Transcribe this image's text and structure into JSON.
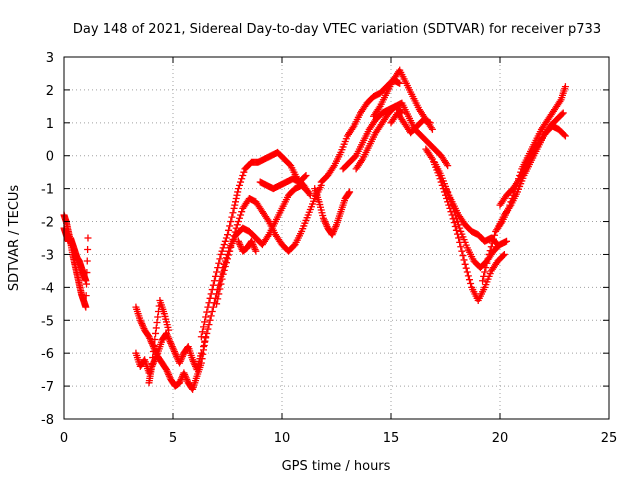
{
  "chart_data": {
    "type": "scatter",
    "title": "Day 148 of 2021, Sidereal Day-to-day VTEC variation (SDTVAR) for receiver p733",
    "xlabel": "GPS time / hours",
    "ylabel": "SDTVAR / TECUs",
    "xlim": [
      0,
      25
    ],
    "ylim": [
      -8,
      3
    ],
    "xticks": [
      "0",
      "5",
      "10",
      "15",
      "20",
      "25"
    ],
    "yticks": [
      "-8",
      "-7",
      "-6",
      "-5",
      "-4",
      "-3",
      "-2",
      "-1",
      "0",
      "1",
      "2",
      "3"
    ],
    "grid": true,
    "marker": "plus",
    "color": "#ff0000",
    "series": [
      {
        "x": [
          0.0,
          0.1,
          0.2,
          0.3,
          0.4,
          0.5,
          0.6,
          0.7,
          0.8,
          0.9,
          1.0,
          1.1
        ],
        "y": [
          -1.8,
          -2.0,
          -2.3,
          -2.6,
          -3.0,
          -3.3,
          -3.6,
          -3.9,
          -4.2,
          -4.4,
          -4.6,
          -2.5
        ]
      },
      {
        "x": [
          0.0,
          0.1,
          0.2,
          0.3,
          0.4,
          0.5,
          0.6,
          0.7,
          0.8,
          0.9,
          1.0
        ],
        "y": [
          -2.2,
          -2.4,
          -2.6,
          -2.5,
          -2.7,
          -2.9,
          -3.1,
          -3.2,
          -3.4,
          -3.6,
          -3.8
        ]
      },
      {
        "x": [
          3.3,
          3.5,
          3.7,
          3.9,
          4.1,
          4.3,
          4.5,
          4.7,
          4.9,
          5.1,
          5.3,
          5.5,
          5.7,
          5.9,
          6.1,
          6.3,
          6.5
        ],
        "y": [
          -4.6,
          -5.0,
          -5.3,
          -5.5,
          -5.8,
          -6.1,
          -6.3,
          -6.5,
          -6.8,
          -7.0,
          -6.9,
          -6.6,
          -6.9,
          -7.1,
          -6.7,
          -6.3,
          -5.5
        ]
      },
      {
        "x": [
          3.3,
          3.5,
          3.7,
          3.9,
          4.1,
          4.3,
          4.5,
          4.7,
          4.9,
          5.1,
          5.3,
          5.5,
          5.7,
          5.9,
          6.1,
          6.3
        ],
        "y": [
          -6.0,
          -6.4,
          -6.2,
          -6.6,
          -6.3,
          -6.0,
          -5.6,
          -5.4,
          -5.7,
          -6.0,
          -6.3,
          -6.0,
          -5.8,
          -6.2,
          -6.5,
          -6.0
        ]
      },
      {
        "x": [
          3.9,
          4.0,
          4.2,
          4.4,
          4.6,
          4.8
        ],
        "y": [
          -6.9,
          -6.5,
          -5.4,
          -4.4,
          -4.8,
          -5.3
        ]
      },
      {
        "x": [
          6.3,
          6.6,
          6.9,
          7.2,
          7.5,
          7.8,
          8.0,
          8.3,
          8.6,
          8.9,
          9.2,
          9.5,
          9.8,
          10.1,
          10.4,
          10.7,
          11.0,
          11.3
        ],
        "y": [
          -5.5,
          -4.6,
          -3.8,
          -3.0,
          -2.4,
          -1.6,
          -1.0,
          -0.4,
          -0.2,
          -0.2,
          -0.1,
          0.0,
          0.1,
          -0.1,
          -0.3,
          -0.7,
          -0.9,
          -1.2
        ]
      },
      {
        "x": [
          6.4,
          6.7,
          7.0,
          7.3,
          7.6,
          7.9,
          8.2,
          8.5,
          8.8,
          9.1,
          9.4,
          9.7,
          10.0,
          10.3,
          10.6,
          10.9,
          11.2
        ],
        "y": [
          -5.8,
          -5.0,
          -4.2,
          -3.4,
          -2.8,
          -2.4,
          -2.2,
          -2.3,
          -2.5,
          -2.7,
          -2.4,
          -2.0,
          -1.6,
          -1.2,
          -1.0,
          -0.9,
          -1.1
        ]
      },
      {
        "x": [
          7.0,
          7.3,
          7.6,
          7.9,
          8.2,
          8.5,
          8.8,
          9.1,
          9.4,
          9.7,
          10.0,
          10.3,
          10.6,
          10.9,
          11.2,
          11.5,
          11.8
        ],
        "y": [
          -4.5,
          -3.6,
          -2.9,
          -2.2,
          -1.6,
          -1.3,
          -1.4,
          -1.7,
          -2.0,
          -2.4,
          -2.7,
          -2.9,
          -2.7,
          -2.3,
          -1.8,
          -1.3,
          -0.9
        ]
      },
      {
        "x": [
          8.0,
          8.2,
          8.4,
          8.6,
          8.8
        ],
        "y": [
          -2.6,
          -2.9,
          -2.8,
          -2.6,
          -2.9
        ]
      },
      {
        "x": [
          9.0,
          9.3,
          9.6,
          9.9,
          10.2,
          10.5,
          10.8,
          11.1
        ],
        "y": [
          -0.8,
          -0.9,
          -1.0,
          -0.9,
          -0.8,
          -0.7,
          -0.8,
          -0.6
        ]
      },
      {
        "x": [
          11.5,
          11.7,
          11.9,
          12.1,
          12.3,
          12.5,
          12.7,
          12.9,
          13.1
        ],
        "y": [
          -1.0,
          -1.4,
          -1.9,
          -2.2,
          -2.4,
          -2.1,
          -1.7,
          -1.3,
          -1.1
        ]
      },
      {
        "x": [
          11.8,
          12.1,
          12.4,
          12.7,
          13.0,
          13.3,
          13.6,
          13.9,
          14.2,
          14.5,
          14.8,
          15.1,
          15.4
        ],
        "y": [
          -0.8,
          -0.6,
          -0.3,
          0.1,
          0.6,
          0.9,
          1.3,
          1.6,
          1.8,
          1.9,
          2.1,
          2.3,
          2.2
        ]
      },
      {
        "x": [
          12.8,
          13.1,
          13.4,
          13.7,
          14.0,
          14.3,
          14.6,
          14.9,
          15.2,
          15.5
        ],
        "y": [
          -0.4,
          -0.2,
          0.0,
          0.4,
          0.8,
          1.1,
          1.3,
          1.4,
          1.5,
          1.3
        ]
      },
      {
        "x": [
          13.4,
          13.7,
          14.0,
          14.3,
          14.6,
          14.9,
          15.2,
          15.5,
          15.8,
          16.1,
          16.4,
          16.7,
          17.0,
          17.3,
          17.6
        ],
        "y": [
          -0.4,
          -0.1,
          0.3,
          0.7,
          1.0,
          1.3,
          1.5,
          1.6,
          1.2,
          0.8,
          0.6,
          0.4,
          0.2,
          0.0,
          -0.3
        ]
      },
      {
        "x": [
          14.2,
          14.5,
          14.8,
          15.1,
          15.4,
          15.7,
          16.0,
          16.3,
          16.6,
          16.9
        ],
        "y": [
          1.2,
          1.5,
          1.9,
          2.3,
          2.6,
          2.2,
          1.8,
          1.4,
          1.1,
          0.8
        ]
      },
      {
        "x": [
          15.0,
          15.3,
          15.6,
          15.9,
          16.2,
          16.5,
          16.8
        ],
        "y": [
          1.0,
          1.3,
          1.0,
          0.7,
          0.9,
          1.1,
          1.0
        ]
      },
      {
        "x": [
          16.6,
          16.9,
          17.2,
          17.5,
          17.8,
          18.1,
          18.4,
          18.7,
          19.0,
          19.3,
          19.6,
          19.9,
          20.2
        ],
        "y": [
          0.2,
          -0.1,
          -0.6,
          -1.2,
          -1.8,
          -2.5,
          -3.3,
          -4.0,
          -4.4,
          -4.0,
          -3.5,
          -3.2,
          -3.0
        ]
      },
      {
        "x": [
          17.0,
          17.3,
          17.6,
          17.9,
          18.2,
          18.5,
          18.8,
          19.1,
          19.4,
          19.7,
          20.0,
          20.3
        ],
        "y": [
          -0.2,
          -0.6,
          -1.1,
          -1.7,
          -2.3,
          -2.8,
          -3.2,
          -3.4,
          -3.2,
          -2.9,
          -2.7,
          -2.6
        ]
      },
      {
        "x": [
          17.5,
          17.8,
          18.1,
          18.4,
          18.7,
          19.0,
          19.3,
          19.6,
          19.9
        ],
        "y": [
          -1.0,
          -1.4,
          -1.8,
          -2.1,
          -2.3,
          -2.4,
          -2.6,
          -2.5,
          -2.7
        ]
      },
      {
        "x": [
          19.2,
          19.5,
          19.8,
          20.1,
          20.4,
          20.7,
          21.0,
          21.3,
          21.6,
          21.9,
          22.2,
          22.5,
          22.8,
          23.0
        ],
        "y": [
          -3.8,
          -3.0,
          -2.3,
          -2.0,
          -1.6,
          -1.0,
          -0.4,
          0.0,
          0.4,
          0.8,
          1.1,
          1.4,
          1.7,
          2.1
        ]
      },
      {
        "x": [
          19.9,
          20.2,
          20.5,
          20.8,
          21.1,
          21.4,
          21.7,
          22.0,
          22.3,
          22.6,
          22.9
        ],
        "y": [
          -2.2,
          -1.8,
          -1.5,
          -1.1,
          -0.6,
          -0.2,
          0.2,
          0.6,
          0.9,
          1.1,
          1.3
        ]
      },
      {
        "x": [
          20.0,
          20.3,
          20.6,
          20.9,
          21.2,
          21.5,
          21.8,
          22.1,
          22.4,
          22.7,
          23.0
        ],
        "y": [
          -1.5,
          -1.2,
          -1.0,
          -0.7,
          -0.3,
          0.1,
          0.4,
          0.7,
          0.9,
          0.8,
          0.6
        ]
      }
    ]
  }
}
